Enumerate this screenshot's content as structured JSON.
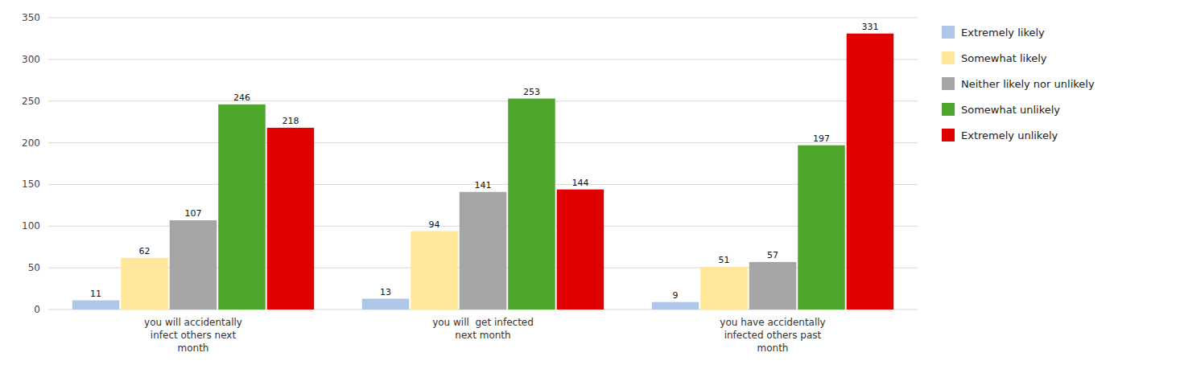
{
  "chart_data": {
    "type": "bar",
    "categories": [
      "you will accidentally\ninfect others next\nmonth",
      "you will  get infected\nnext month",
      "you have accidentally\ninfected others past\nmonth"
    ],
    "series": [
      {
        "name": "Extremely likely",
        "color": "#aec6e8",
        "values": [
          11,
          13,
          9
        ]
      },
      {
        "name": "Somewhat likely",
        "color": "#ffe699",
        "values": [
          62,
          94,
          51
        ]
      },
      {
        "name": "Neither likely nor unlikely",
        "color": "#a5a5a5",
        "values": [
          107,
          141,
          57
        ]
      },
      {
        "name": "Somewhat unlikely",
        "color": "#4ea72a",
        "values": [
          246,
          253,
          197
        ]
      },
      {
        "name": "Extremely unlikely",
        "color": "#e00000",
        "values": [
          218,
          144,
          331
        ]
      }
    ],
    "ylim": [
      0,
      350
    ],
    "yticks": [
      0,
      50,
      100,
      150,
      200,
      250,
      300,
      350
    ],
    "grid": true,
    "legend": "right",
    "data_labels": true
  }
}
